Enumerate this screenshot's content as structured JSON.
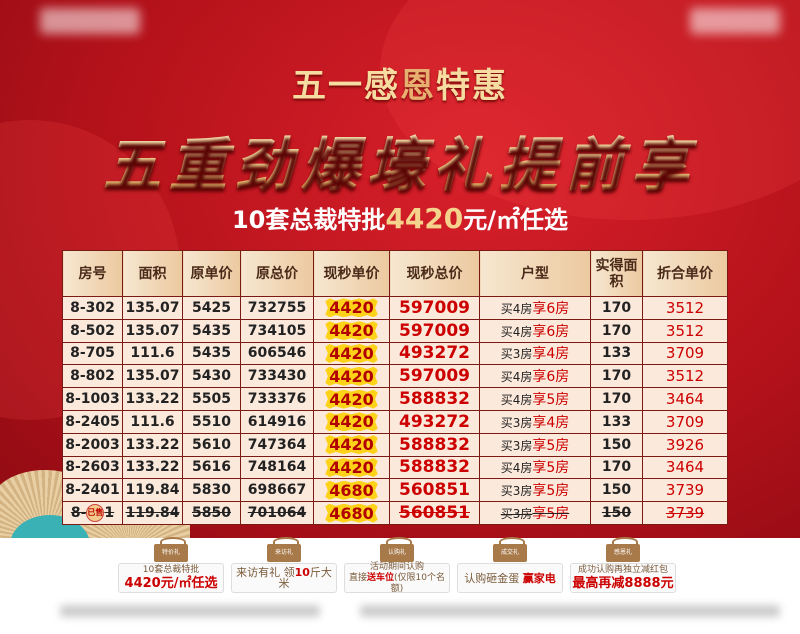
{
  "header": {
    "line1_a": "五一感",
    "line1_b": "恩",
    "line1_c": "特惠",
    "line2": "五重劲爆壕礼提前享",
    "line3_a": "10套总裁特批",
    "line3_num": "4420",
    "line3_b": "元/㎡任选"
  },
  "table": {
    "headers": [
      "房号",
      "面积",
      "原单价",
      "原总价",
      "现秒单价",
      "现秒总价",
      "户型",
      "实得面积",
      "折合单价"
    ],
    "rows": [
      {
        "room": "8-302",
        "area": "135.07",
        "orig_unit": "5425",
        "orig_total": "732755",
        "sale_unit": "4420",
        "sale_total": "597009",
        "type_a": "买4房",
        "type_b": "享6房",
        "real_area": "170",
        "eq_unit": "3512"
      },
      {
        "room": "8-502",
        "area": "135.07",
        "orig_unit": "5435",
        "orig_total": "734105",
        "sale_unit": "4420",
        "sale_total": "597009",
        "type_a": "买4房",
        "type_b": "享6房",
        "real_area": "170",
        "eq_unit": "3512"
      },
      {
        "room": "8-705",
        "area": "111.6",
        "orig_unit": "5435",
        "orig_total": "606546",
        "sale_unit": "4420",
        "sale_total": "493272",
        "type_a": "买3房",
        "type_b": "享4房",
        "real_area": "133",
        "eq_unit": "3709"
      },
      {
        "room": "8-802",
        "area": "135.07",
        "orig_unit": "5430",
        "orig_total": "733430",
        "sale_unit": "4420",
        "sale_total": "597009",
        "type_a": "买4房",
        "type_b": "享6房",
        "real_area": "170",
        "eq_unit": "3512"
      },
      {
        "room": "8-1003",
        "area": "133.22",
        "orig_unit": "5505",
        "orig_total": "733376",
        "sale_unit": "4420",
        "sale_total": "588832",
        "type_a": "买4房",
        "type_b": "享5房",
        "real_area": "170",
        "eq_unit": "3464"
      },
      {
        "room": "8-2405",
        "area": "111.6",
        "orig_unit": "5510",
        "orig_total": "614916",
        "sale_unit": "4420",
        "sale_total": "493272",
        "type_a": "买3房",
        "type_b": "享4房",
        "real_area": "133",
        "eq_unit": "3709"
      },
      {
        "room": "8-2003",
        "area": "133.22",
        "orig_unit": "5610",
        "orig_total": "747364",
        "sale_unit": "4420",
        "sale_total": "588832",
        "type_a": "买3房",
        "type_b": "享5房",
        "real_area": "150",
        "eq_unit": "3926"
      },
      {
        "room": "8-2603",
        "area": "133.22",
        "orig_unit": "5616",
        "orig_total": "748164",
        "sale_unit": "4420",
        "sale_total": "588832",
        "type_a": "买4房",
        "type_b": "享5房",
        "real_area": "170",
        "eq_unit": "3464"
      },
      {
        "room": "8-2401",
        "area": "119.84",
        "orig_unit": "5830",
        "orig_total": "698667",
        "sale_unit": "4680",
        "sale_total": "560851",
        "type_a": "买3房",
        "type_b": "享5房",
        "real_area": "150",
        "eq_unit": "3739"
      },
      {
        "room_a": "8-",
        "room_b": "1",
        "sold_stamp": "已售",
        "area": "119.84",
        "orig_unit": "5850",
        "orig_total": "701064",
        "sale_unit": "4680",
        "sale_total": "560851",
        "type_a": "买3房",
        "type_b": "享5房",
        "real_area": "150",
        "eq_unit": "3739"
      }
    ]
  },
  "gifts": [
    {
      "tag": "特价礼",
      "small": "10套总裁特批",
      "big": "4420元/㎡任选"
    },
    {
      "tag": "来访礼",
      "mid_a": "来访有礼 领",
      "mid_red": "10",
      "mid_b": "斤大米"
    },
    {
      "tag": "认购礼",
      "small": "活动期间认购",
      "small2_a": "直接",
      "small2_red": "送车位",
      "small2_b": "(仅限10个名额)"
    },
    {
      "tag": "成交礼",
      "mid_a": "认购砸金蛋 ",
      "mid_red": "赢家电"
    },
    {
      "tag": "感恩礼",
      "small": "成功认购再独立减红包",
      "big": "最高再减8888元"
    }
  ]
}
